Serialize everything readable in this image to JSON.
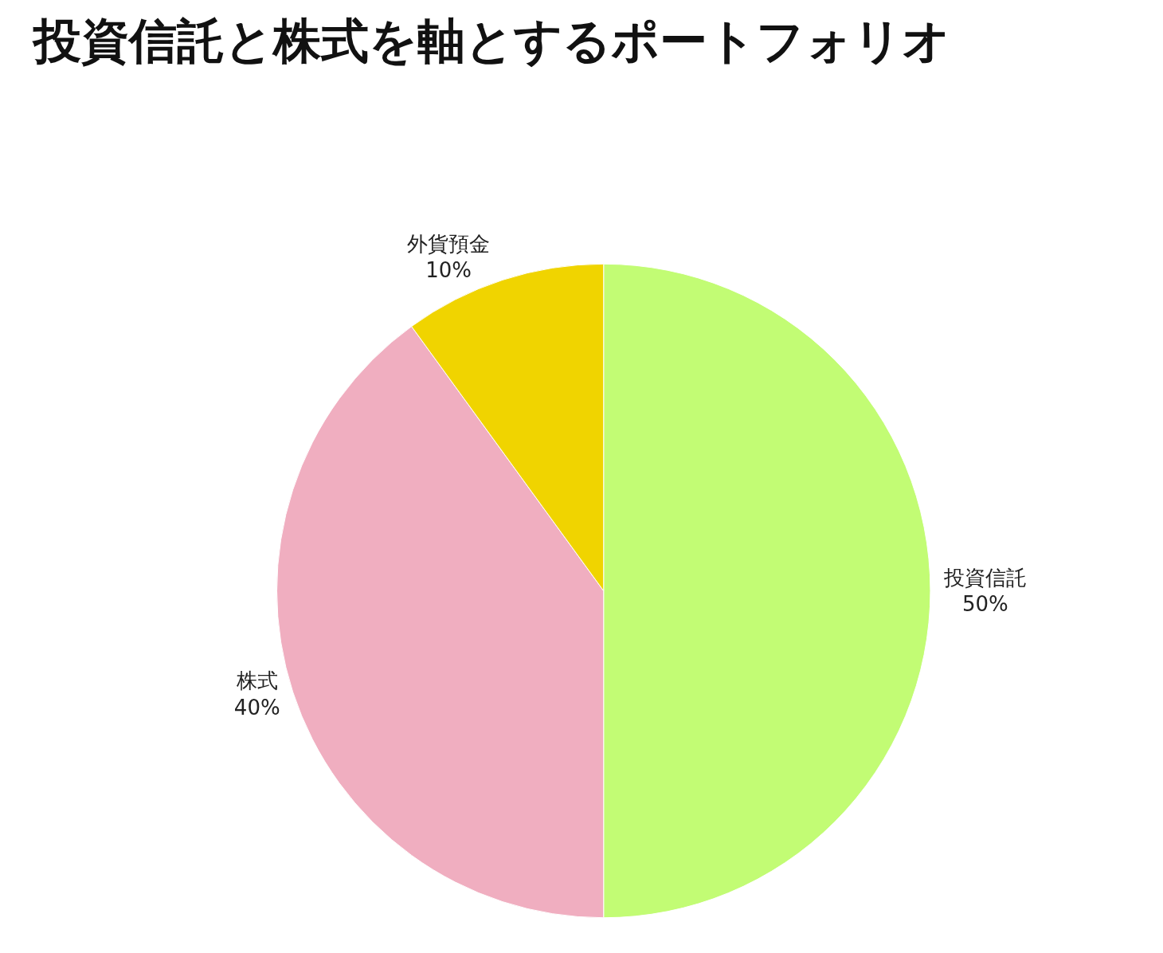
{
  "chart_data": {
    "type": "pie",
    "title": "投資信託と株式を軸とするポートフォリオ",
    "categories": [
      "投資信託",
      "株式",
      "外貨預金"
    ],
    "values": [
      50,
      40,
      10
    ],
    "colors": [
      "#c2fc74",
      "#f0aec0",
      "#f0d400"
    ],
    "value_labels": [
      "50%",
      "40%",
      "10%"
    ],
    "legend": false
  }
}
